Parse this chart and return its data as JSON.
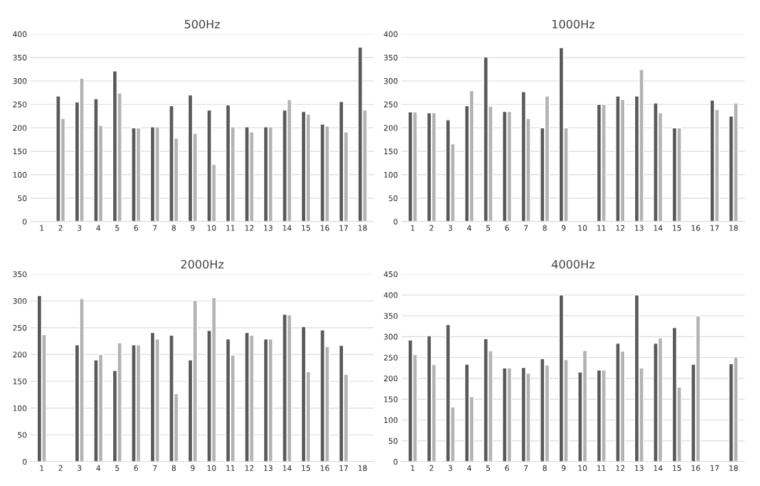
{
  "chart_data": [
    {
      "type": "bar",
      "title": "500Hz",
      "categories": [
        "1",
        "2",
        "3",
        "4",
        "5",
        "6",
        "7",
        "8",
        "9",
        "10",
        "11",
        "12",
        "13",
        "14",
        "15",
        "16",
        "17",
        "18"
      ],
      "ylim": [
        0,
        400
      ],
      "yticks": [
        0,
        50,
        100,
        150,
        200,
        250,
        300,
        350,
        400
      ],
      "grid": "y",
      "series": [
        {
          "color": "#595959",
          "values": [
            null,
            268,
            255,
            262,
            321,
            200,
            202,
            247,
            270,
            238,
            249,
            202,
            202,
            238,
            235,
            208,
            256,
            372
          ]
        },
        {
          "color": "#b3b3b3",
          "values": [
            null,
            220,
            306,
            205,
            274,
            200,
            202,
            178,
            188,
            122,
            202,
            191,
            202,
            260,
            229,
            204,
            191,
            238
          ]
        }
      ]
    },
    {
      "type": "bar",
      "title": "1000Hz",
      "categories": [
        "1",
        "2",
        "3",
        "4",
        "5",
        "6",
        "7",
        "8",
        "9",
        "10",
        "11",
        "12",
        "13",
        "14",
        "15",
        "16",
        "17",
        "18"
      ],
      "ylim": [
        0,
        400
      ],
      "yticks": [
        0,
        50,
        100,
        150,
        200,
        250,
        300,
        350,
        400
      ],
      "grid": "y",
      "series": [
        {
          "color": "#595959",
          "values": [
            234,
            232,
            217,
            247,
            351,
            235,
            277,
            200,
            371,
            null,
            250,
            268,
            268,
            253,
            200,
            null,
            259,
            225
          ]
        },
        {
          "color": "#b3b3b3",
          "values": [
            234,
            232,
            166,
            279,
            246,
            235,
            220,
            268,
            200,
            null,
            250,
            260,
            324,
            232,
            200,
            null,
            239,
            253
          ]
        }
      ]
    },
    {
      "type": "bar",
      "title": "2000Hz",
      "categories": [
        "1",
        "2",
        "3",
        "4",
        "5",
        "6",
        "7",
        "8",
        "9",
        "10",
        "11",
        "12",
        "13",
        "14",
        "15",
        "16",
        "17",
        "18"
      ],
      "ylim": [
        0,
        350
      ],
      "yticks": [
        0,
        50,
        100,
        150,
        200,
        250,
        300,
        350
      ],
      "grid": "y",
      "series": [
        {
          "color": "#595959",
          "values": [
            310,
            null,
            218,
            190,
            170,
            218,
            241,
            236,
            190,
            245,
            229,
            241,
            229,
            275,
            252,
            246,
            217,
            null
          ]
        },
        {
          "color": "#b3b3b3",
          "values": [
            237,
            null,
            304,
            200,
            222,
            218,
            229,
            127,
            301,
            306,
            199,
            236,
            229,
            274,
            168,
            215,
            163,
            null
          ]
        }
      ]
    },
    {
      "type": "bar",
      "title": "4000Hz",
      "categories": [
        "1",
        "2",
        "3",
        "4",
        "5",
        "6",
        "7",
        "8",
        "9",
        "10",
        "11",
        "12",
        "13",
        "14",
        "15",
        "16",
        "17",
        "18"
      ],
      "ylim": [
        0,
        450
      ],
      "yticks": [
        0,
        50,
        100,
        150,
        200,
        250,
        300,
        350,
        400,
        450
      ],
      "grid": "y",
      "series": [
        {
          "color": "#595959",
          "values": [
            292,
            302,
            329,
            234,
            295,
            225,
            226,
            247,
            400,
            215,
            220,
            284,
            400,
            284,
            322,
            234,
            null,
            235
          ]
        },
        {
          "color": "#b3b3b3",
          "values": [
            257,
            233,
            131,
            156,
            266,
            225,
            212,
            232,
            245,
            267,
            220,
            265,
            225,
            297,
            179,
            350,
            null,
            251
          ]
        }
      ]
    }
  ]
}
